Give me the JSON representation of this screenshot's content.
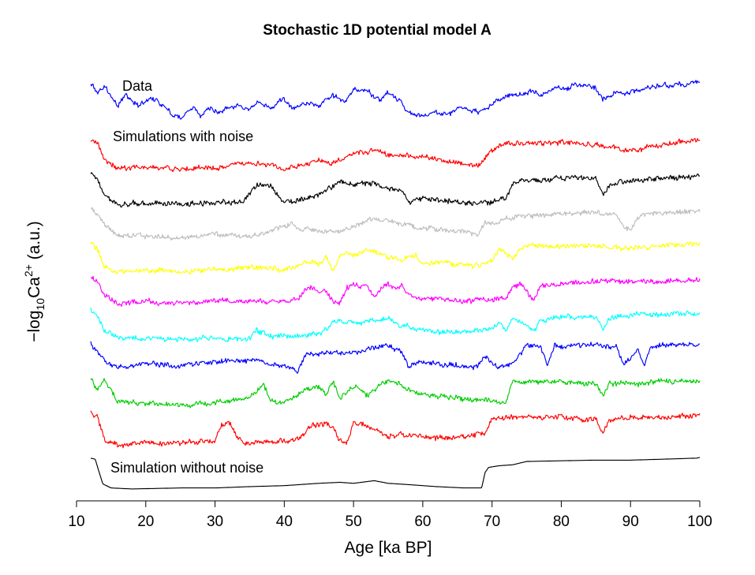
{
  "chart_data": {
    "type": "line",
    "title": "Stochastic 1D potential model A",
    "xlabel": "Age [ka BP]",
    "ylabel": "−log₁₀Ca²⁺ (a.u.)",
    "xlim": [
      10,
      100
    ],
    "xticks": [
      10,
      20,
      30,
      40,
      50,
      60,
      70,
      80,
      90,
      100
    ],
    "y_ticks_shown": false,
    "grid": false,
    "legend": "none",
    "annotations": [
      {
        "text": "Data",
        "series": "data"
      },
      {
        "text": "Simulations with noise",
        "series": "sim-1"
      },
      {
        "text": "Simulation without noise",
        "series": "no-noise"
      }
    ],
    "series": [
      {
        "id": "data",
        "color": "#0000ff",
        "noise": 2.2,
        "walk": 1.6,
        "offset": 0,
        "amp": 1,
        "x": [
          12,
          13,
          14,
          16,
          17,
          19,
          21,
          23,
          24,
          25,
          27,
          28,
          29,
          31,
          33,
          35,
          36,
          38,
          40,
          41,
          43,
          45,
          47,
          48,
          49,
          50,
          52,
          53,
          54,
          55,
          56,
          58,
          60,
          62,
          64,
          66,
          68,
          69,
          71,
          73,
          74,
          76,
          77,
          79,
          82,
          84,
          85,
          86,
          88,
          90,
          92,
          94,
          96,
          98,
          100
        ],
        "y": [
          0.85,
          0.6,
          0.75,
          0.3,
          0.55,
          0.35,
          0.5,
          0.25,
          0.1,
          0.05,
          0.3,
          0.1,
          0.25,
          0.2,
          0.35,
          0.25,
          0.4,
          0.3,
          0.45,
          0.3,
          0.4,
          0.35,
          0.55,
          0.5,
          0.45,
          0.7,
          0.65,
          0.55,
          0.45,
          0.6,
          0.5,
          0.2,
          0.1,
          0.2,
          0.15,
          0.3,
          0.2,
          0.25,
          0.45,
          0.6,
          0.55,
          0.65,
          0.55,
          0.7,
          0.75,
          0.8,
          0.7,
          0.45,
          0.65,
          0.6,
          0.7,
          0.75,
          0.75,
          0.8,
          0.85
        ]
      },
      {
        "id": "sim-1",
        "color": "#ff0000",
        "noise": 2.6,
        "walk": 1.2,
        "offset": 0,
        "amp": 1,
        "x": [
          12,
          13,
          14,
          16,
          20,
          25,
          30,
          35,
          38,
          40,
          43,
          45,
          47,
          50,
          53,
          56,
          60,
          63,
          66,
          68,
          70,
          72,
          75,
          80,
          85,
          90,
          95,
          100
        ],
        "y": [
          0.85,
          0.8,
          0.4,
          0.15,
          0.2,
          0.15,
          0.2,
          0.3,
          0.25,
          0.15,
          0.25,
          0.35,
          0.3,
          0.55,
          0.6,
          0.5,
          0.45,
          0.35,
          0.3,
          0.2,
          0.6,
          0.75,
          0.8,
          0.8,
          0.75,
          0.6,
          0.75,
          0.85
        ]
      },
      {
        "id": "sim-2",
        "color": "#000000",
        "noise": 2.6,
        "walk": 1.2,
        "offset": 0,
        "amp": 1,
        "x": [
          12,
          13,
          14,
          16,
          20,
          25,
          30,
          34,
          35,
          36,
          38,
          40,
          44,
          47,
          48,
          50,
          53,
          55,
          57,
          58,
          60,
          63,
          66,
          70,
          72,
          73,
          75,
          80,
          85,
          86,
          87,
          90,
          95,
          100
        ],
        "y": [
          0.85,
          0.75,
          0.35,
          0.15,
          0.2,
          0.15,
          0.2,
          0.2,
          0.4,
          0.6,
          0.55,
          0.2,
          0.3,
          0.55,
          0.7,
          0.6,
          0.65,
          0.5,
          0.45,
          0.2,
          0.3,
          0.25,
          0.2,
          0.2,
          0.3,
          0.65,
          0.7,
          0.75,
          0.75,
          0.35,
          0.6,
          0.7,
          0.75,
          0.8
        ]
      },
      {
        "id": "sim-3",
        "color": "#bebebe",
        "noise": 2.6,
        "walk": 1.2,
        "offset": 0,
        "amp": 1,
        "x": [
          12,
          13,
          14,
          16,
          20,
          25,
          30,
          35,
          40,
          41,
          42,
          45,
          48,
          51,
          52,
          55,
          57,
          60,
          64,
          68,
          69,
          70,
          72,
          75,
          80,
          85,
          88,
          89,
          90,
          91,
          92,
          95,
          100
        ],
        "y": [
          0.85,
          0.7,
          0.45,
          0.2,
          0.15,
          0.1,
          0.2,
          0.15,
          0.4,
          0.5,
          0.35,
          0.3,
          0.25,
          0.45,
          0.6,
          0.55,
          0.45,
          0.35,
          0.3,
          0.2,
          0.5,
          0.45,
          0.6,
          0.65,
          0.7,
          0.75,
          0.7,
          0.35,
          0.3,
          0.6,
          0.7,
          0.75,
          0.8
        ]
      },
      {
        "id": "sim-4",
        "color": "#ffff00",
        "noise": 2.6,
        "walk": 1.2,
        "offset": 0,
        "amp": 1,
        "x": [
          12,
          13,
          14,
          15,
          20,
          25,
          30,
          35,
          40,
          42,
          44,
          45,
          46,
          47,
          48,
          50,
          52,
          55,
          57,
          59,
          60,
          62,
          64,
          66,
          68,
          70,
          71,
          73,
          74,
          75,
          80,
          85,
          90,
          95,
          100
        ],
        "y": [
          0.85,
          0.65,
          0.3,
          0.15,
          0.2,
          0.15,
          0.2,
          0.25,
          0.2,
          0.3,
          0.4,
          0.3,
          0.55,
          0.2,
          0.55,
          0.55,
          0.65,
          0.5,
          0.45,
          0.55,
          0.3,
          0.4,
          0.35,
          0.3,
          0.3,
          0.4,
          0.7,
          0.45,
          0.7,
          0.75,
          0.75,
          0.75,
          0.7,
          0.75,
          0.8
        ]
      },
      {
        "id": "sim-5",
        "color": "#ff00ff",
        "noise": 2.6,
        "walk": 1.2,
        "offset": 0,
        "amp": 1,
        "x": [
          12,
          13,
          14,
          16,
          20,
          25,
          30,
          35,
          40,
          42,
          43,
          44,
          46,
          47,
          48,
          49,
          50,
          52,
          53,
          54,
          55,
          56,
          57,
          58,
          60,
          63,
          66,
          70,
          72,
          73,
          74,
          75,
          76,
          77,
          80,
          85,
          90,
          95,
          100
        ],
        "y": [
          0.85,
          0.7,
          0.35,
          0.15,
          0.2,
          0.15,
          0.2,
          0.2,
          0.2,
          0.25,
          0.5,
          0.55,
          0.45,
          0.2,
          0.15,
          0.55,
          0.6,
          0.6,
          0.3,
          0.55,
          0.65,
          0.5,
          0.6,
          0.35,
          0.25,
          0.25,
          0.2,
          0.25,
          0.3,
          0.55,
          0.65,
          0.5,
          0.2,
          0.6,
          0.65,
          0.7,
          0.7,
          0.7,
          0.75
        ]
      },
      {
        "id": "sim-6",
        "color": "#00ffff",
        "noise": 2.6,
        "walk": 1.2,
        "offset": 0,
        "amp": 1,
        "x": [
          12,
          13,
          14,
          16,
          20,
          25,
          30,
          35,
          36,
          38,
          40,
          45,
          47,
          48,
          50,
          52,
          55,
          57,
          60,
          63,
          66,
          70,
          71,
          72,
          73,
          74,
          75,
          76,
          77,
          80,
          85,
          86,
          87,
          90,
          95,
          100
        ],
        "y": [
          0.85,
          0.7,
          0.35,
          0.15,
          0.15,
          0.1,
          0.15,
          0.15,
          0.35,
          0.2,
          0.2,
          0.25,
          0.5,
          0.55,
          0.5,
          0.55,
          0.6,
          0.45,
          0.35,
          0.3,
          0.3,
          0.35,
          0.55,
          0.35,
          0.6,
          0.55,
          0.5,
          0.3,
          0.55,
          0.65,
          0.65,
          0.35,
          0.6,
          0.7,
          0.7,
          0.75
        ]
      },
      {
        "id": "sim-7",
        "color": "#0000ff",
        "noise": 2.6,
        "walk": 1.2,
        "offset": 0,
        "amp": 1,
        "x": [
          12,
          13,
          14,
          16,
          20,
          25,
          30,
          35,
          40,
          42,
          43,
          45,
          47,
          50,
          53,
          55,
          57,
          58,
          60,
          63,
          66,
          68,
          69,
          70,
          71,
          72,
          73,
          75,
          77,
          78,
          79,
          80,
          82,
          85,
          88,
          89,
          90,
          91,
          92,
          93,
          95,
          100
        ],
        "y": [
          0.85,
          0.65,
          0.45,
          0.25,
          0.35,
          0.3,
          0.4,
          0.45,
          0.3,
          0.2,
          0.55,
          0.6,
          0.65,
          0.6,
          0.75,
          0.8,
          0.65,
          0.3,
          0.4,
          0.35,
          0.3,
          0.3,
          0.55,
          0.35,
          0.25,
          0.3,
          0.35,
          0.8,
          0.75,
          0.35,
          0.8,
          0.75,
          0.8,
          0.8,
          0.75,
          0.35,
          0.5,
          0.75,
          0.3,
          0.75,
          0.8,
          0.85
        ]
      },
      {
        "id": "sim-8",
        "color": "#00cd00",
        "noise": 2.6,
        "walk": 1.2,
        "offset": 0,
        "amp": 1,
        "x": [
          12,
          13,
          14,
          16,
          20,
          25,
          30,
          35,
          37,
          38,
          40,
          42,
          44,
          45,
          46,
          47,
          48,
          50,
          52,
          54,
          56,
          58,
          60,
          63,
          66,
          70,
          72,
          73,
          75,
          80,
          85,
          86,
          87,
          90,
          95,
          100
        ],
        "y": [
          0.85,
          0.55,
          0.8,
          0.3,
          0.25,
          0.2,
          0.25,
          0.4,
          0.65,
          0.35,
          0.25,
          0.45,
          0.6,
          0.65,
          0.45,
          0.75,
          0.35,
          0.65,
          0.45,
          0.7,
          0.75,
          0.55,
          0.45,
          0.4,
          0.35,
          0.3,
          0.3,
          0.75,
          0.75,
          0.75,
          0.7,
          0.4,
          0.7,
          0.7,
          0.75,
          0.75
        ]
      },
      {
        "id": "sim-9",
        "color": "#ff0000",
        "noise": 2.6,
        "walk": 1.2,
        "offset": 0,
        "amp": 1,
        "x": [
          12,
          13,
          14,
          16,
          20,
          25,
          30,
          31,
          32,
          34,
          40,
          42,
          44,
          46,
          47,
          48,
          49,
          50,
          52,
          55,
          57,
          60,
          63,
          66,
          69,
          70,
          72,
          75,
          80,
          85,
          86,
          87,
          90,
          95,
          100
        ],
        "y": [
          0.85,
          0.75,
          0.25,
          0.1,
          0.15,
          0.15,
          0.2,
          0.55,
          0.6,
          0.15,
          0.2,
          0.25,
          0.55,
          0.6,
          0.55,
          0.2,
          0.15,
          0.6,
          0.55,
          0.3,
          0.35,
          0.3,
          0.25,
          0.3,
          0.35,
          0.7,
          0.75,
          0.75,
          0.75,
          0.7,
          0.35,
          0.7,
          0.75,
          0.75,
          0.8
        ]
      },
      {
        "id": "no-noise",
        "color": "#000000",
        "noise": 0,
        "walk": 0,
        "offset": 0,
        "amp": 1,
        "x": [
          12,
          12.7,
          13.2,
          13.8,
          15,
          18,
          25,
          30,
          35,
          40,
          45,
          48,
          50,
          53,
          55,
          58,
          62,
          66,
          68.5,
          69,
          69.5,
          71,
          73,
          75,
          80,
          85,
          90,
          95,
          99.5,
          100
        ],
        "y": [
          0.98,
          0.95,
          0.6,
          0.2,
          0.08,
          0.05,
          0.08,
          0.08,
          0.12,
          0.15,
          0.22,
          0.25,
          0.22,
          0.3,
          0.22,
          0.18,
          0.12,
          0.08,
          0.08,
          0.55,
          0.7,
          0.75,
          0.78,
          0.88,
          0.9,
          0.92,
          0.92,
          0.95,
          0.98,
          1.0
        ]
      }
    ]
  }
}
